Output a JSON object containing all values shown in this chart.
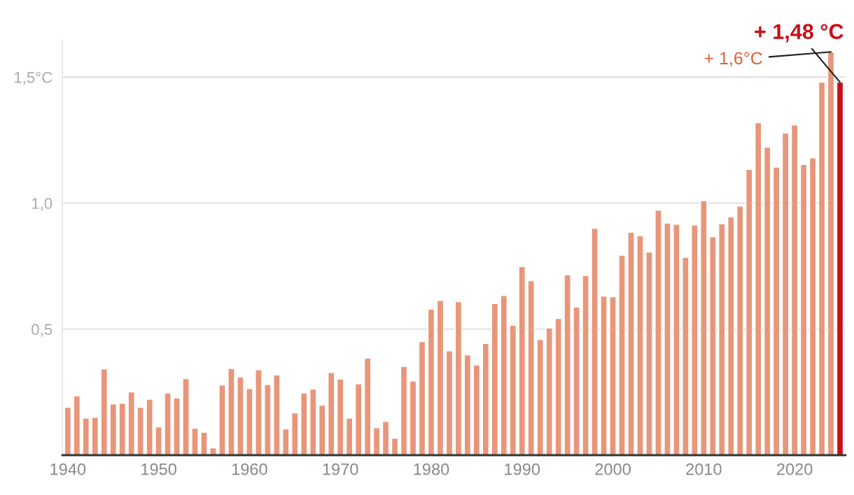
{
  "chart_data": {
    "type": "bar",
    "x": [
      1940,
      1941,
      1942,
      1943,
      1944,
      1945,
      1946,
      1947,
      1948,
      1949,
      1950,
      1951,
      1952,
      1953,
      1954,
      1955,
      1956,
      1957,
      1958,
      1959,
      1960,
      1961,
      1962,
      1963,
      1964,
      1965,
      1966,
      1967,
      1968,
      1969,
      1970,
      1971,
      1972,
      1973,
      1974,
      1975,
      1976,
      1977,
      1978,
      1979,
      1980,
      1981,
      1982,
      1983,
      1984,
      1985,
      1986,
      1987,
      1988,
      1989,
      1990,
      1991,
      1992,
      1993,
      1994,
      1995,
      1996,
      1997,
      1998,
      1999,
      2000,
      2001,
      2002,
      2003,
      2004,
      2005,
      2006,
      2007,
      2008,
      2009,
      2010,
      2011,
      2012,
      2013,
      2014,
      2015,
      2016,
      2017,
      2018,
      2019,
      2020,
      2021,
      2022,
      2023,
      2024,
      2025
    ],
    "values": [
      0.19,
      0.235,
      0.147,
      0.15,
      0.342,
      0.203,
      0.206,
      0.251,
      0.19,
      0.222,
      0.112,
      0.246,
      0.227,
      0.304,
      0.107,
      0.091,
      0.029,
      0.278,
      0.344,
      0.31,
      0.264,
      0.339,
      0.28,
      0.318,
      0.104,
      0.168,
      0.246,
      0.262,
      0.198,
      0.328,
      0.302,
      0.147,
      0.283,
      0.385,
      0.109,
      0.134,
      0.067,
      0.352,
      0.294,
      0.451,
      0.579,
      0.614,
      0.414,
      0.609,
      0.398,
      0.358,
      0.443,
      0.601,
      0.633,
      0.515,
      0.748,
      0.692,
      0.459,
      0.505,
      0.542,
      0.716,
      0.587,
      0.713,
      0.9,
      0.631,
      0.628,
      0.793,
      0.884,
      0.87,
      0.806,
      0.972,
      0.921,
      0.916,
      0.785,
      0.913,
      1.009,
      0.867,
      0.918,
      0.945,
      0.988,
      1.134,
      1.319,
      1.222,
      1.143,
      1.278,
      1.31,
      1.153,
      1.18,
      1.48,
      1.6,
      1.48
    ],
    "colors": [
      "#e8967a",
      "#e8967a",
      "#e8967a",
      "#e8967a",
      "#e8967a",
      "#e8967a",
      "#e8967a",
      "#e8967a",
      "#e8967a",
      "#e8967a",
      "#e8967a",
      "#e8967a",
      "#e8967a",
      "#e8967a",
      "#e8967a",
      "#e8967a",
      "#e8967a",
      "#e8967a",
      "#e8967a",
      "#e8967a",
      "#e8967a",
      "#e8967a",
      "#e8967a",
      "#e8967a",
      "#e8967a",
      "#e8967a",
      "#e8967a",
      "#e8967a",
      "#e8967a",
      "#e8967a",
      "#e8967a",
      "#e8967a",
      "#e8967a",
      "#e8967a",
      "#e8967a",
      "#e8967a",
      "#e8967a",
      "#e8967a",
      "#e8967a",
      "#e8967a",
      "#e8967a",
      "#e8967a",
      "#e8967a",
      "#e8967a",
      "#e8967a",
      "#e8967a",
      "#e8967a",
      "#e8967a",
      "#e8967a",
      "#e8967a",
      "#e8967a",
      "#e8967a",
      "#e8967a",
      "#e8967a",
      "#e8967a",
      "#e8967a",
      "#e8967a",
      "#e8967a",
      "#e8967a",
      "#e8967a",
      "#e8967a",
      "#e8967a",
      "#e8967a",
      "#e8967a",
      "#e8967a",
      "#e8967a",
      "#e8967a",
      "#e8967a",
      "#e8967a",
      "#e8967a",
      "#e8967a",
      "#e8967a",
      "#e8967a",
      "#e8967a",
      "#e8967a",
      "#e8967a",
      "#e8967a",
      "#e8967a",
      "#e8967a",
      "#e8967a",
      "#e8967a",
      "#e8967a",
      "#e8967a",
      "#e8967a",
      "#e8967a",
      "#c8101a"
    ],
    "xlim": [
      1939.4,
      2025.6
    ],
    "xticks": [
      1940,
      1950,
      1960,
      1970,
      1980,
      1990,
      2000,
      2010,
      2020
    ],
    "ylim": [
      0,
      1.65
    ],
    "yticks": [
      {
        "value": 0.5,
        "label": "0,5"
      },
      {
        "value": 1.0,
        "label": "1,0"
      },
      {
        "value": 1.5,
        "label": "1,5°C"
      }
    ],
    "grid": "y",
    "annotations": [
      {
        "text": "+ 1,6°C",
        "x": 2024,
        "y": 1.6
      },
      {
        "text": "+ 1,48 °C",
        "x": 2025,
        "y": 1.48
      }
    ]
  }
}
